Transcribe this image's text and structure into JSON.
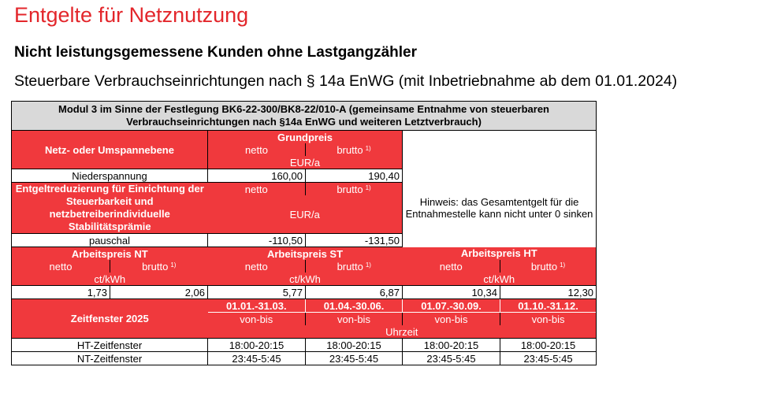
{
  "title": "Entgelte für Netznutzung",
  "subtitle": "Nicht leistungsgemessene Kunden ohne Lastgangzähler",
  "subsubtitle": "Steuerbare Verbrauchseinrichtungen nach § 14a EnWG (mit Inbetriebnahme ab dem 01.01.2024)",
  "table": {
    "module_header": "Modul 3 im Sinne der Festlegung BK6-22-300/BK8-22/010-A (gemeinsame Entnahme von steuerbaren Verbrauchseinrichtungen nach §14a EnWG und weiteren Letztverbrauch)",
    "grundpreis": {
      "row_label": "Netz- oder Umspannebene",
      "header": "Grundpreis",
      "netto": "netto",
      "brutto": "brutto",
      "footnote": "1)",
      "unit": "EUR/a",
      "data_label": "Niederspannung",
      "netto_value": "160,00",
      "brutto_value": "190,40"
    },
    "reduzierung": {
      "row_label": "Entgeltreduzierung für Einrichtung der Steuerbarkeit und netzbetreiberindividuelle Stabilitätsprämie",
      "netto": "netto",
      "brutto": "brutto",
      "footnote": "1)",
      "unit": "EUR/a",
      "hint": "Hinweis: das Gesamtentgelt für die Entnahmestelle kann nicht unter 0 sinken",
      "data_label": "pauschal",
      "netto_value": "-110,50",
      "brutto_value": "-131,50"
    },
    "arbeitspreis": {
      "nt_header": "Arbeitspreis NT",
      "st_header": "Arbeitspreis ST",
      "ht_header": "Arbeitspreis HT",
      "netto": "netto",
      "brutto": "brutto",
      "footnote": "1)",
      "unit": "ct/kWh",
      "values": [
        "1,73",
        "2,06",
        "5,77",
        "6,87",
        "10,34",
        "12,30"
      ]
    },
    "zeitfenster": {
      "label": "Zeitfenster 2025",
      "periods": [
        "01.01.-31.03.",
        "01.04.-30.06.",
        "01.07.-30.09.",
        "01.10.-31.12."
      ],
      "von_bis": "von-bis",
      "uhrzeit": "Uhrzeit",
      "rows": [
        {
          "label": "HT-Zeitfenster",
          "values": [
            "18:00-20:15",
            "18:00-20:15",
            "18:00-20:15",
            "18:00-20:15"
          ]
        },
        {
          "label": "NT-Zeitfenster",
          "values": [
            "23:45-5:45",
            "23:45-5:45",
            "23:45-5:45",
            "23:45-5:45"
          ]
        }
      ]
    }
  }
}
